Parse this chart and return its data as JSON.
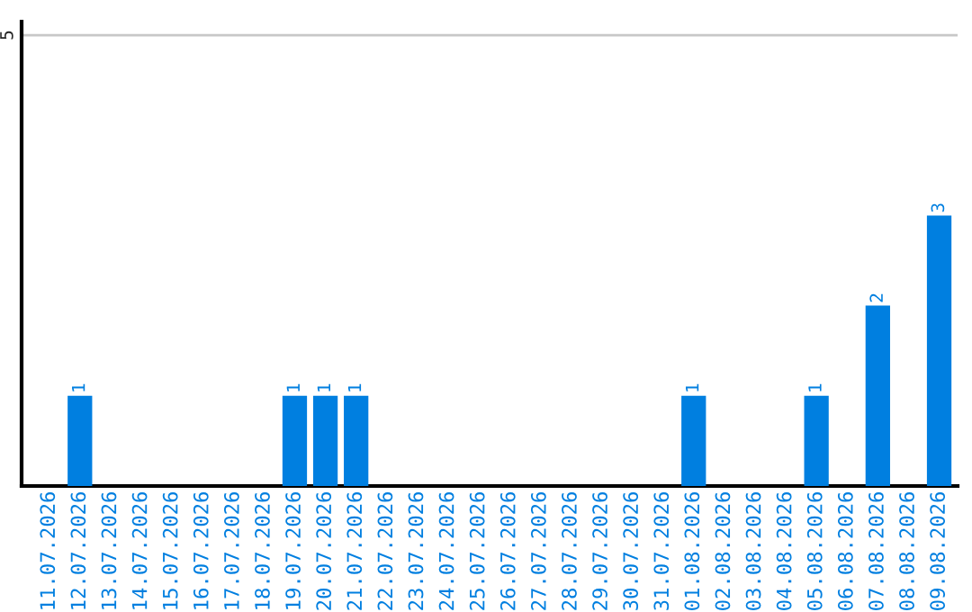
{
  "chart_data": {
    "type": "bar",
    "categories": [
      "11.07.2026",
      "12.07.2026",
      "13.07.2026",
      "14.07.2026",
      "15.07.2026",
      "16.07.2026",
      "17.07.2026",
      "18.07.2026",
      "19.07.2026",
      "20.07.2026",
      "21.07.2026",
      "22.07.2026",
      "23.07.2026",
      "24.07.2026",
      "25.07.2026",
      "26.07.2026",
      "27.07.2026",
      "28.07.2026",
      "29.07.2026",
      "30.07.2026",
      "31.07.2026",
      "01.08.2026",
      "02.08.2026",
      "03.08.2026",
      "04.08.2026",
      "05.08.2026",
      "06.08.2026",
      "07.08.2026",
      "08.08.2026",
      "09.08.2026"
    ],
    "values": [
      0,
      1,
      0,
      0,
      0,
      0,
      0,
      0,
      1,
      1,
      1,
      0,
      0,
      0,
      0,
      0,
      0,
      0,
      0,
      0,
      0,
      1,
      0,
      0,
      0,
      1,
      0,
      2,
      0,
      3
    ],
    "value_labels": [
      null,
      "1",
      null,
      null,
      null,
      null,
      null,
      null,
      "1",
      "1",
      "1",
      null,
      null,
      null,
      null,
      null,
      null,
      null,
      null,
      null,
      null,
      "1",
      null,
      null,
      null,
      "1",
      null,
      "2",
      null,
      "3"
    ],
    "color": "#007fe0",
    "ylim": [
      0,
      5.15
    ],
    "yticks": [
      5
    ],
    "grid": "y"
  }
}
